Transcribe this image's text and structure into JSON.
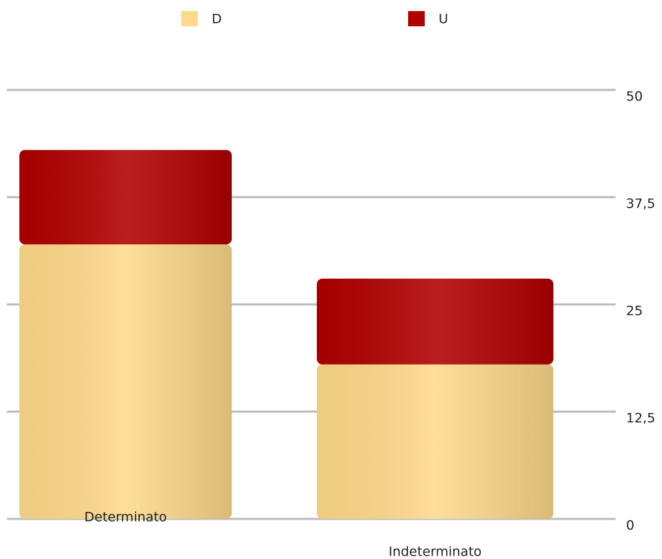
{
  "chart_data": {
    "type": "bar",
    "stacked": true,
    "categories": [
      "Determinato",
      "Indeterminato"
    ],
    "series": [
      {
        "name": "D",
        "color": "#fdd98a",
        "values": [
          32,
          18
        ]
      },
      {
        "name": "U",
        "color": "#b00000",
        "values": [
          11,
          10
        ]
      }
    ],
    "ylim": [
      0,
      50
    ],
    "yticks": [
      0,
      {
        "value": 12.5,
        "label": "12,5"
      },
      25,
      {
        "value": 37.5,
        "label": "37,5"
      },
      50
    ],
    "grid": true,
    "legend": "top"
  }
}
